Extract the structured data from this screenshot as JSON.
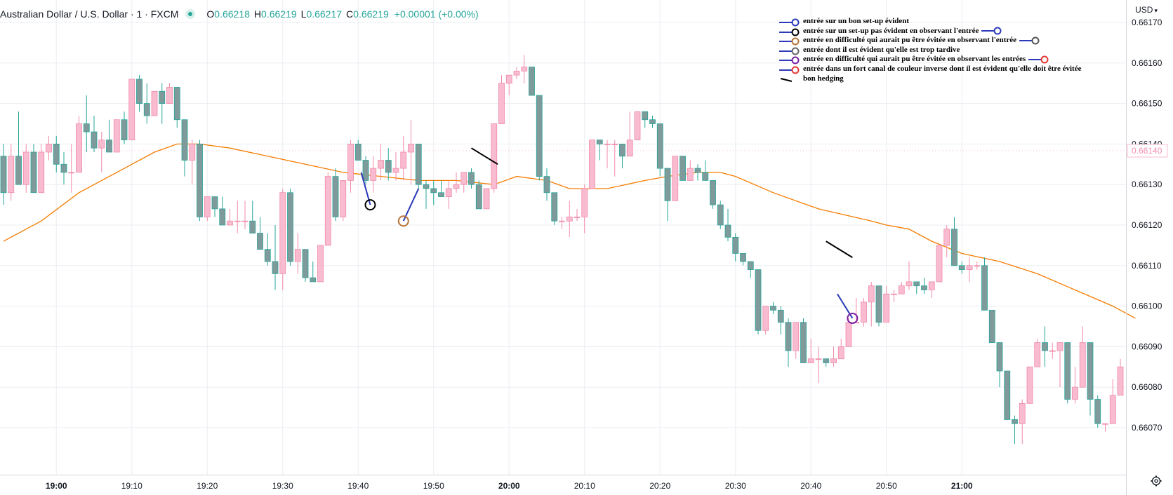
{
  "header": {
    "title": "Australian Dollar / U.S. Dollar · 1 · FXCM",
    "open_label": "O",
    "open": "0.66218",
    "high_label": "H",
    "high": "0.66219",
    "low_label": "L",
    "low": "0.66217",
    "close_label": "C",
    "close": "0.66219",
    "change": "+0.00001 (+0.00%)",
    "currency": "USD"
  },
  "chart_data": {
    "type": "candlestick",
    "symbol": "AUDUSD",
    "interval": "1 minute",
    "y_range": [
      0.66062,
      0.66178
    ],
    "y_ticks": [
      "0.66170",
      "0.66160",
      "0.66150",
      "0.66140",
      "0.66130",
      "0.66120",
      "0.66110",
      "0.66100",
      "0.66090",
      "0.66080",
      "0.66070"
    ],
    "last_price_label": "0.66140",
    "x_ticks": [
      {
        "label": "19:00",
        "bar": 7,
        "bold": true
      },
      {
        "label": "19:10",
        "bar": 17,
        "bold": false
      },
      {
        "label": "19:20",
        "bar": 27,
        "bold": false
      },
      {
        "label": "19:30",
        "bar": 37,
        "bold": false
      },
      {
        "label": "19:40",
        "bar": 47,
        "bold": false
      },
      {
        "label": "19:50",
        "bar": 57,
        "bold": false
      },
      {
        "label": "20:00",
        "bar": 67,
        "bold": true
      },
      {
        "label": "20:10",
        "bar": 77,
        "bold": false
      },
      {
        "label": "20:20",
        "bar": 87,
        "bold": false
      },
      {
        "label": "20:30",
        "bar": 97,
        "bold": false
      },
      {
        "label": "20:40",
        "bar": 107,
        "bold": false
      },
      {
        "label": "20:50",
        "bar": 117,
        "bold": false
      },
      {
        "label": "21:00",
        "bar": 127,
        "bold": true
      }
    ],
    "colors": {
      "up": "#f8bbd0",
      "up_border": "#f08aa8",
      "down": "#7f9a9a",
      "down_border": "#26a69a",
      "ma": "#f57c00",
      "grid": "#ebedf3"
    },
    "candles": [
      [
        0.66137,
        0.6614,
        0.66125,
        0.66128
      ],
      [
        0.66128,
        0.6614,
        0.66126,
        0.66137
      ],
      [
        0.66137,
        0.66148,
        0.6613,
        0.6613
      ],
      [
        0.6613,
        0.6614,
        0.66128,
        0.66138
      ],
      [
        0.66138,
        0.6614,
        0.66128,
        0.66128
      ],
      [
        0.66128,
        0.6614,
        0.66128,
        0.66138
      ],
      [
        0.66138,
        0.66142,
        0.66136,
        0.6614
      ],
      [
        0.6614,
        0.66142,
        0.66133,
        0.66135
      ],
      [
        0.66135,
        0.66138,
        0.6613,
        0.66133
      ],
      [
        0.66133,
        0.6614,
        0.66128,
        0.66133
      ],
      [
        0.66133,
        0.66147,
        0.66133,
        0.66145
      ],
      [
        0.66145,
        0.66152,
        0.66138,
        0.66143
      ],
      [
        0.66143,
        0.66147,
        0.66138,
        0.66139
      ],
      [
        0.66139,
        0.66143,
        0.66133,
        0.66141
      ],
      [
        0.66141,
        0.66146,
        0.66138,
        0.66138
      ],
      [
        0.66138,
        0.66146,
        0.66138,
        0.66146
      ],
      [
        0.66146,
        0.66148,
        0.6614,
        0.66141
      ],
      [
        0.66141,
        0.66156,
        0.66141,
        0.66156
      ],
      [
        0.66156,
        0.66157,
        0.66148,
        0.6615
      ],
      [
        0.6615,
        0.66155,
        0.66145,
        0.66147
      ],
      [
        0.66147,
        0.66153,
        0.66147,
        0.66153
      ],
      [
        0.66153,
        0.66155,
        0.66145,
        0.6615
      ],
      [
        0.6615,
        0.66155,
        0.6615,
        0.66154
      ],
      [
        0.66154,
        0.66154,
        0.66144,
        0.66146
      ],
      [
        0.66146,
        0.66146,
        0.66132,
        0.66136
      ],
      [
        0.66136,
        0.66141,
        0.6613,
        0.6614
      ],
      [
        0.6614,
        0.66141,
        0.66121,
        0.66122
      ],
      [
        0.66122,
        0.66126,
        0.66121,
        0.66127
      ],
      [
        0.66127,
        0.66127,
        0.66122,
        0.66124
      ],
      [
        0.66124,
        0.66127,
        0.6612,
        0.6612
      ],
      [
        0.6612,
        0.66124,
        0.6612,
        0.66121
      ],
      [
        0.66121,
        0.66126,
        0.66118,
        0.66121
      ],
      [
        0.66121,
        0.66126,
        0.66119,
        0.66121
      ],
      [
        0.66121,
        0.66126,
        0.66118,
        0.66118
      ],
      [
        0.66118,
        0.66122,
        0.66114,
        0.66114
      ],
      [
        0.66114,
        0.66118,
        0.6611,
        0.66111
      ],
      [
        0.66111,
        0.6612,
        0.66104,
        0.66108
      ],
      [
        0.66108,
        0.66129,
        0.66104,
        0.66128
      ],
      [
        0.66128,
        0.66129,
        0.6611,
        0.66111
      ],
      [
        0.66111,
        0.66118,
        0.66108,
        0.66114
      ],
      [
        0.66114,
        0.66114,
        0.66106,
        0.66107
      ],
      [
        0.66107,
        0.66111,
        0.66106,
        0.66106
      ],
      [
        0.66106,
        0.66115,
        0.66106,
        0.66115
      ],
      [
        0.66115,
        0.66133,
        0.66115,
        0.66132
      ],
      [
        0.66132,
        0.66134,
        0.66121,
        0.66122
      ],
      [
        0.66122,
        0.66131,
        0.66121,
        0.66131
      ],
      [
        0.66131,
        0.66141,
        0.66128,
        0.6614
      ],
      [
        0.6614,
        0.66141,
        0.66136,
        0.66136
      ],
      [
        0.66136,
        0.66137,
        0.6613,
        0.66131
      ],
      [
        0.66131,
        0.66137,
        0.66128,
        0.66134
      ],
      [
        0.66134,
        0.6614,
        0.66131,
        0.66136
      ],
      [
        0.66136,
        0.66139,
        0.66131,
        0.66133
      ],
      [
        0.66133,
        0.66138,
        0.66131,
        0.66134
      ],
      [
        0.66134,
        0.66142,
        0.66131,
        0.66138
      ],
      [
        0.66138,
        0.66146,
        0.6613,
        0.6614
      ],
      [
        0.6614,
        0.6614,
        0.66129,
        0.6613
      ],
      [
        0.6613,
        0.66131,
        0.66124,
        0.66129
      ],
      [
        0.66129,
        0.66131,
        0.66125,
        0.66128
      ],
      [
        0.66128,
        0.66131,
        0.66127,
        0.66127
      ],
      [
        0.66127,
        0.66131,
        0.66124,
        0.66129
      ],
      [
        0.66129,
        0.66133,
        0.66128,
        0.6613
      ],
      [
        0.6613,
        0.66133,
        0.66128,
        0.66133
      ],
      [
        0.66133,
        0.66134,
        0.66129,
        0.6613
      ],
      [
        0.6613,
        0.66131,
        0.66124,
        0.66124
      ],
      [
        0.66124,
        0.66129,
        0.66124,
        0.66129
      ],
      [
        0.66129,
        0.66145,
        0.66128,
        0.66145
      ],
      [
        0.66145,
        0.66157,
        0.66145,
        0.66155
      ],
      [
        0.66155,
        0.66157,
        0.66152,
        0.66157
      ],
      [
        0.66157,
        0.66159,
        0.66156,
        0.66158
      ],
      [
        0.66158,
        0.66162,
        0.66155,
        0.66159
      ],
      [
        0.66159,
        0.66159,
        0.66152,
        0.66152
      ],
      [
        0.66152,
        0.66152,
        0.66131,
        0.66132
      ],
      [
        0.66132,
        0.66134,
        0.66126,
        0.66128
      ],
      [
        0.66128,
        0.66128,
        0.6612,
        0.66121
      ],
      [
        0.66121,
        0.66122,
        0.66119,
        0.66121
      ],
      [
        0.66121,
        0.66126,
        0.66117,
        0.66122
      ],
      [
        0.66122,
        0.66124,
        0.66121,
        0.66122
      ],
      [
        0.66122,
        0.6613,
        0.66118,
        0.66129
      ],
      [
        0.66129,
        0.66141,
        0.66129,
        0.66141
      ],
      [
        0.66141,
        0.66141,
        0.66136,
        0.6614
      ],
      [
        0.6614,
        0.66141,
        0.66134,
        0.6614
      ],
      [
        0.6614,
        0.66141,
        0.66132,
        0.6614
      ],
      [
        0.6614,
        0.6614,
        0.66134,
        0.66137
      ],
      [
        0.66137,
        0.66148,
        0.66137,
        0.66141
      ],
      [
        0.66141,
        0.66148,
        0.66141,
        0.66148
      ],
      [
        0.66148,
        0.66148,
        0.66144,
        0.66146
      ],
      [
        0.66146,
        0.66147,
        0.66144,
        0.66145
      ],
      [
        0.66145,
        0.66145,
        0.66132,
        0.66134
      ],
      [
        0.66134,
        0.66134,
        0.66121,
        0.66126
      ],
      [
        0.66126,
        0.66137,
        0.66126,
        0.66137
      ],
      [
        0.66137,
        0.66137,
        0.66131,
        0.66131
      ],
      [
        0.66131,
        0.66136,
        0.66131,
        0.66134
      ],
      [
        0.66134,
        0.66135,
        0.66131,
        0.66133
      ],
      [
        0.66133,
        0.66136,
        0.66131,
        0.66131
      ],
      [
        0.66131,
        0.66131,
        0.66124,
        0.66125
      ],
      [
        0.66125,
        0.66126,
        0.66119,
        0.6612
      ],
      [
        0.6612,
        0.66124,
        0.66116,
        0.66117
      ],
      [
        0.66117,
        0.66118,
        0.66111,
        0.66113
      ],
      [
        0.66113,
        0.66113,
        0.6611,
        0.66111
      ],
      [
        0.66111,
        0.66111,
        0.66107,
        0.66109
      ],
      [
        0.66109,
        0.66109,
        0.66093,
        0.66094
      ],
      [
        0.66094,
        0.661,
        0.66093,
        0.661
      ],
      [
        0.661,
        0.66101,
        0.66098,
        0.66099
      ],
      [
        0.66099,
        0.661,
        0.66093,
        0.66096
      ],
      [
        0.66096,
        0.66097,
        0.66085,
        0.66089
      ],
      [
        0.66089,
        0.66096,
        0.66087,
        0.66096
      ],
      [
        0.66096,
        0.66097,
        0.66086,
        0.66086
      ],
      [
        0.66086,
        0.66092,
        0.66086,
        0.66087
      ],
      [
        0.66087,
        0.6609,
        0.66081,
        0.66087
      ],
      [
        0.66087,
        0.66087,
        0.66085,
        0.66086
      ],
      [
        0.66086,
        0.6609,
        0.66085,
        0.66087
      ],
      [
        0.66087,
        0.66092,
        0.66087,
        0.6609
      ],
      [
        0.6609,
        0.66097,
        0.6609,
        0.66096
      ],
      [
        0.66096,
        0.66102,
        0.66096,
        0.66096
      ],
      [
        0.66096,
        0.66102,
        0.66095,
        0.66101
      ],
      [
        0.66101,
        0.66106,
        0.66095,
        0.66105
      ],
      [
        0.66105,
        0.66105,
        0.66095,
        0.66096
      ],
      [
        0.66096,
        0.66105,
        0.66096,
        0.66103
      ],
      [
        0.66103,
        0.66104,
        0.66101,
        0.66103
      ],
      [
        0.66103,
        0.66106,
        0.66103,
        0.66105
      ],
      [
        0.66105,
        0.66111,
        0.66104,
        0.66106
      ],
      [
        0.66106,
        0.66106,
        0.66103,
        0.66105
      ],
      [
        0.66105,
        0.66107,
        0.66103,
        0.66104
      ],
      [
        0.66104,
        0.66106,
        0.66102,
        0.66106
      ],
      [
        0.66106,
        0.66115,
        0.66106,
        0.66115
      ],
      [
        0.66115,
        0.6612,
        0.66112,
        0.66119
      ],
      [
        0.66119,
        0.66122,
        0.6611,
        0.6611
      ],
      [
        0.6611,
        0.66111,
        0.66108,
        0.66109
      ],
      [
        0.66109,
        0.66112,
        0.66106,
        0.6611
      ],
      [
        0.6611,
        0.66111,
        0.66109,
        0.6611
      ],
      [
        0.6611,
        0.66112,
        0.66099,
        0.66099
      ],
      [
        0.66099,
        0.66099,
        0.66091,
        0.66091
      ],
      [
        0.66091,
        0.66091,
        0.6608,
        0.66084
      ],
      [
        0.66084,
        0.66084,
        0.66072,
        0.66072
      ],
      [
        0.66072,
        0.66073,
        0.66066,
        0.66071
      ],
      [
        0.66071,
        0.66077,
        0.66066,
        0.66076
      ],
      [
        0.66076,
        0.66085,
        0.66076,
        0.66085
      ],
      [
        0.66085,
        0.66092,
        0.66085,
        0.66091
      ],
      [
        0.66091,
        0.66095,
        0.66085,
        0.66089
      ],
      [
        0.66089,
        0.66091,
        0.66087,
        0.66089
      ],
      [
        0.66089,
        0.66091,
        0.6608,
        0.66091
      ],
      [
        0.66091,
        0.66091,
        0.66076,
        0.66077
      ],
      [
        0.66077,
        0.66085,
        0.66076,
        0.6608
      ],
      [
        0.6608,
        0.66095,
        0.6608,
        0.66091
      ],
      [
        0.66091,
        0.66091,
        0.66073,
        0.66077
      ],
      [
        0.66077,
        0.66078,
        0.6607,
        0.66071
      ],
      [
        0.66071,
        0.66071,
        0.66069,
        0.66071
      ],
      [
        0.66071,
        0.66082,
        0.66071,
        0.66078
      ],
      [
        0.66078,
        0.66087,
        0.66078,
        0.66085
      ],
      [
        0.66085,
        0.6609,
        0.66085,
        0.6609
      ]
    ],
    "moving_average": [
      [
        0,
        0.66116
      ],
      [
        5,
        0.66121
      ],
      [
        10,
        0.66128
      ],
      [
        15,
        0.66133
      ],
      [
        20,
        0.66138
      ],
      [
        23,
        0.6614
      ],
      [
        26,
        0.6614
      ],
      [
        30,
        0.66139
      ],
      [
        35,
        0.66137
      ],
      [
        40,
        0.66135
      ],
      [
        45,
        0.66133
      ],
      [
        50,
        0.66132
      ],
      [
        55,
        0.66131
      ],
      [
        60,
        0.66131
      ],
      [
        65,
        0.6613
      ],
      [
        68,
        0.66132
      ],
      [
        72,
        0.66131
      ],
      [
        75,
        0.66129
      ],
      [
        80,
        0.66129
      ],
      [
        85,
        0.66131
      ],
      [
        88,
        0.66132
      ],
      [
        92,
        0.66133
      ],
      [
        95,
        0.66133
      ],
      [
        97,
        0.66132
      ],
      [
        102,
        0.66128
      ],
      [
        108,
        0.66124
      ],
      [
        115,
        0.66121
      ],
      [
        117,
        0.6612
      ],
      [
        120,
        0.66119
      ],
      [
        123,
        0.66116
      ],
      [
        127,
        0.66113
      ],
      [
        132,
        0.66111
      ],
      [
        137,
        0.66108
      ],
      [
        142,
        0.66104
      ],
      [
        147,
        0.661
      ],
      [
        150,
        0.66097
      ]
    ],
    "annotations": [
      {
        "kind": "entry",
        "color": "#000000",
        "from": [
          47.4,
          0.66133
        ],
        "to": [
          48.6,
          0.66125
        ]
      },
      {
        "kind": "entry",
        "color": "#b87333",
        "from": [
          55.0,
          0.66129
        ],
        "to": [
          53.0,
          0.66121
        ]
      },
      {
        "kind": "entry",
        "color": "#7b1fa2",
        "from": [
          110.5,
          0.66103
        ],
        "to": [
          112.5,
          0.66097
        ]
      },
      {
        "kind": "hedge",
        "color": "#000000",
        "from": [
          62.0,
          0.66139
        ],
        "to": [
          65.5,
          0.66135
        ]
      },
      {
        "kind": "hedge",
        "color": "#000000",
        "from": [
          109.0,
          0.66116
        ],
        "to": [
          112.5,
          0.66112
        ]
      }
    ]
  },
  "legend": {
    "items": [
      {
        "text": "entrée sur un bon set-up évident",
        "ring": "#2b3ab8",
        "tail": ""
      },
      {
        "text": "entrée sur un set-up pas évident en observant l'entrée",
        "ring": "#000000",
        "tail": "#2b3ab8"
      },
      {
        "text": "entrée en difficulté qui aurait pu être évitée en observant l'entrée",
        "ring": "#b87333",
        "tail": "#555555"
      },
      {
        "text": "entrée dont il est évident qu'elle est trop tardive",
        "ring": "#666666",
        "tail": ""
      },
      {
        "text": "entrée en difficulté qui aurait pu être évitée en observant les entrées",
        "ring": "#7b1fa2",
        "tail": "#e53935"
      },
      {
        "text": "entrée dans un fort canal de couleur inverse dont il est évident qu'elle doit être évitée",
        "ring": "#e53935",
        "tail": ""
      },
      {
        "text": "bon hedging",
        "ring": "",
        "tail": ""
      }
    ]
  }
}
